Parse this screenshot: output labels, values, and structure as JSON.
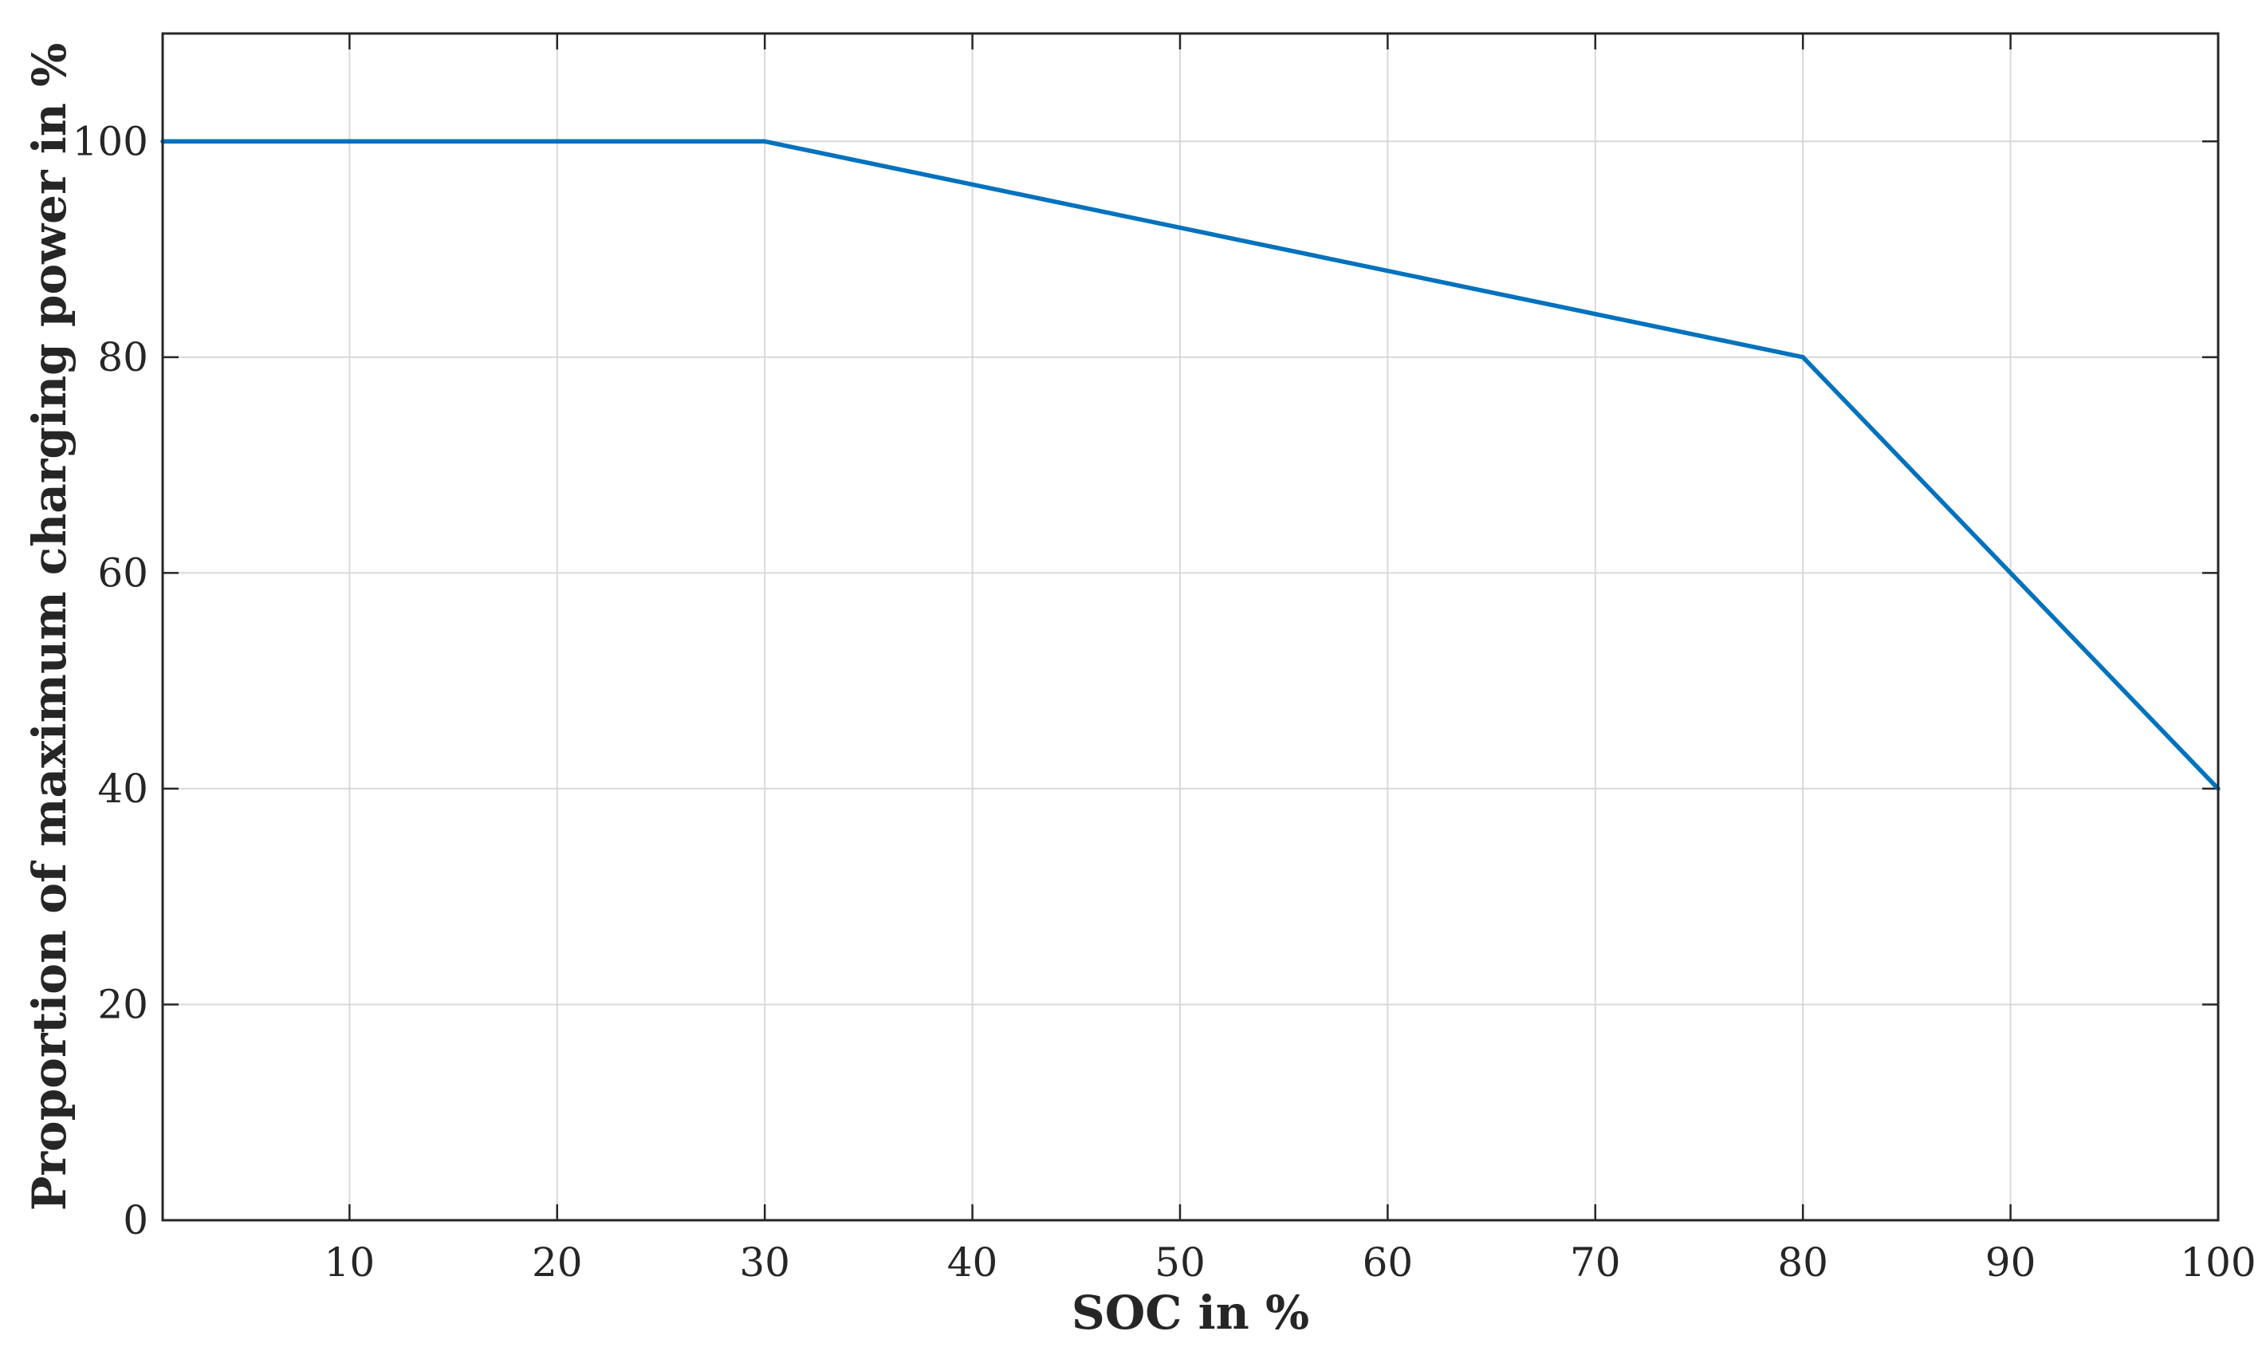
{
  "chart_data": {
    "type": "line",
    "title": "",
    "xlabel": "SOC in %",
    "ylabel": "Proportion of maximum charging power in %",
    "xlim": [
      1,
      100
    ],
    "ylim": [
      0,
      110
    ],
    "xticks": [
      10,
      20,
      30,
      40,
      50,
      60,
      70,
      80,
      90,
      100
    ],
    "yticks": [
      0,
      20,
      40,
      60,
      80,
      100
    ],
    "xtick_labels": [
      "10",
      "20",
      "30",
      "40",
      "50",
      "60",
      "70",
      "80",
      "90",
      "100"
    ],
    "ytick_labels": [
      "0",
      "20",
      "40",
      "60",
      "80",
      "100"
    ],
    "grid": true,
    "legend": "none",
    "series": [
      {
        "color": "#0072BD",
        "x": [
          1,
          30,
          80,
          100
        ],
        "y": [
          100,
          100,
          80,
          40
        ]
      }
    ]
  }
}
